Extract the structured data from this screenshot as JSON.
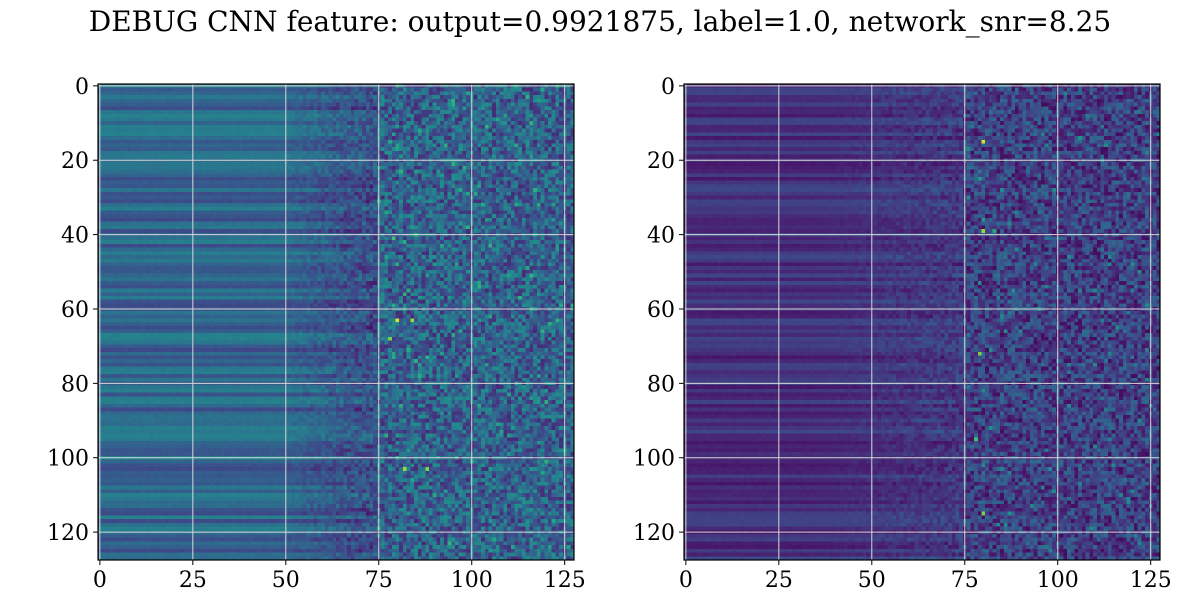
{
  "title": "DEBUG CNN feature: output=0.9921875, label=1.0, network_snr=8.25",
  "chart_data": [
    {
      "type": "heatmap",
      "name": "",
      "title": "",
      "xlabel": "",
      "ylabel": "",
      "rows": 128,
      "cols": 128,
      "xlim": [
        0,
        127
      ],
      "ylim": [
        127,
        0
      ],
      "x_ticks": [
        0,
        25,
        50,
        75,
        100,
        125
      ],
      "y_ticks": [
        0,
        20,
        40,
        60,
        80,
        100,
        120
      ],
      "grid": true,
      "colormap": "viridis",
      "onset_column": 75,
      "hotspots": [
        {
          "row": 63,
          "col": 80,
          "value": 0.95
        },
        {
          "row": 63,
          "col": 84,
          "value": 0.85
        },
        {
          "row": 68,
          "col": 78,
          "value": 0.8
        },
        {
          "row": 103,
          "col": 82,
          "value": 0.85
        },
        {
          "row": 103,
          "col": 88,
          "value": 0.8
        },
        {
          "row": 41,
          "col": 79,
          "value": 0.7
        },
        {
          "row": 16,
          "col": 80,
          "value": 0.6
        },
        {
          "row": 11,
          "col": 80,
          "value": 0.55
        },
        {
          "row": 100,
          "col": 80,
          "value": 0.6
        },
        {
          "row": 2,
          "col": 81,
          "value": 0.5
        },
        {
          "row": 3,
          "col": 102,
          "value": 0.5
        }
      ]
    },
    {
      "type": "heatmap",
      "name": "",
      "title": "",
      "xlabel": "",
      "ylabel": "",
      "rows": 128,
      "cols": 128,
      "xlim": [
        0,
        127
      ],
      "ylim": [
        127,
        0
      ],
      "x_ticks": [
        0,
        25,
        50,
        75,
        100,
        125
      ],
      "y_ticks": [
        0,
        20,
        40,
        60,
        80,
        100,
        120
      ],
      "grid": true,
      "colormap": "viridis",
      "onset_column": 75,
      "hotspots": [
        {
          "row": 15,
          "col": 80,
          "value": 0.95
        },
        {
          "row": 39,
          "col": 80,
          "value": 0.85
        },
        {
          "row": 39,
          "col": 83,
          "value": 0.6
        },
        {
          "row": 72,
          "col": 79,
          "value": 0.8
        },
        {
          "row": 95,
          "col": 78,
          "value": 0.7
        },
        {
          "row": 115,
          "col": 80,
          "value": 0.8
        },
        {
          "row": 25,
          "col": 79,
          "value": 0.55
        },
        {
          "row": 36,
          "col": 80,
          "value": 0.55
        },
        {
          "row": 115,
          "col": 87,
          "value": 0.5
        }
      ]
    }
  ]
}
